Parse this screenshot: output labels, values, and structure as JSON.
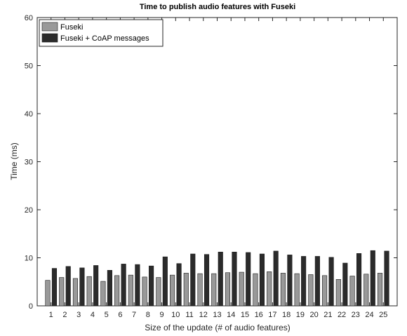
{
  "chart_data": {
    "type": "bar",
    "title": "Time to publish audio features with Fuseki",
    "xlabel": "Size of the update (# of audio features)",
    "ylabel": "Time (ms)",
    "ylim": [
      0,
      60
    ],
    "yticks": [
      0,
      10,
      20,
      30,
      40,
      50,
      60
    ],
    "categories": [
      "1",
      "2",
      "3",
      "4",
      "5",
      "6",
      "7",
      "8",
      "9",
      "10",
      "11",
      "12",
      "13",
      "14",
      "15",
      "16",
      "17",
      "18",
      "19",
      "20",
      "21",
      "22",
      "23",
      "24",
      "25"
    ],
    "series": [
      {
        "name": "Fuseki",
        "color": "#999999",
        "values": [
          5.3,
          5.9,
          5.7,
          6.1,
          5.1,
          6.3,
          6.4,
          6.0,
          5.9,
          6.4,
          6.8,
          6.7,
          6.7,
          6.9,
          7.0,
          6.7,
          7.1,
          6.8,
          6.7,
          6.5,
          6.3,
          5.5,
          6.2,
          6.6,
          6.8
        ]
      },
      {
        "name": "Fuseki + CoAP messages",
        "color": "#2b2b2b",
        "values": [
          7.8,
          8.2,
          7.9,
          8.4,
          7.4,
          8.7,
          8.6,
          8.3,
          10.2,
          8.8,
          10.8,
          10.7,
          11.2,
          11.2,
          11.1,
          10.8,
          11.4,
          10.6,
          10.3,
          10.3,
          10.1,
          8.9,
          10.9,
          11.5,
          11.4
        ]
      }
    ],
    "legend_position": "top-left",
    "grid": false
  }
}
